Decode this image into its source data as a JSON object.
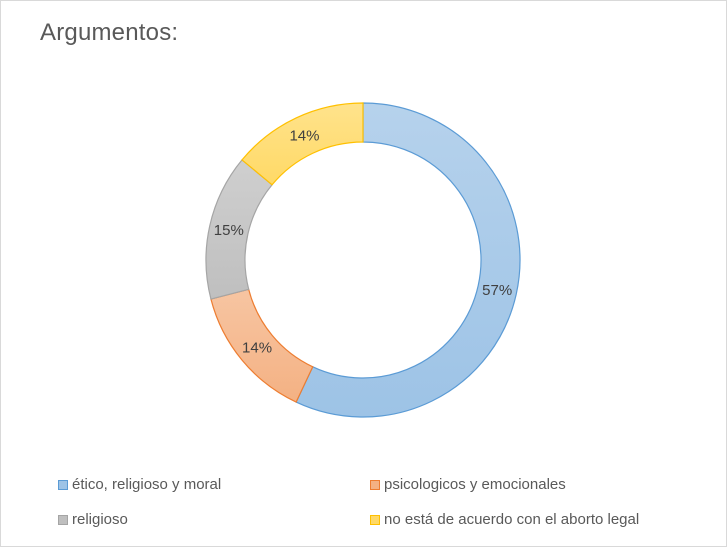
{
  "chart_data": {
    "type": "pie",
    "variant": "doughnut",
    "title": "Argumentos:",
    "categories": [
      "ético, religioso y moral",
      "psicologicos y emocionales",
      "religioso",
      "no está de acuerdo con el aborto legal"
    ],
    "values": [
      57,
      14,
      15,
      14
    ],
    "value_labels": [
      "57%",
      "14%",
      "15%",
      "14%"
    ],
    "colors": [
      "#9dc3e6",
      "#f4b183",
      "#bfbfbf",
      "#ffd966"
    ],
    "border_colors": [
      "#5b9bd5",
      "#ed7d31",
      "#a5a5a5",
      "#ffc000"
    ],
    "legend_position": "bottom"
  }
}
